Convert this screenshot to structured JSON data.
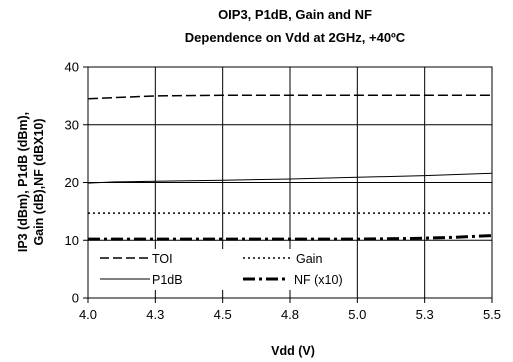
{
  "chart_data": {
    "type": "line",
    "title": "OIP3, P1dB, Gain and NF",
    "subtitle": "Dependence on Vdd at 2GHz, +40ºC",
    "xlabel": "Vdd (V)",
    "ylabel_lines": [
      "IP3 (dBm), P1dB (dBm),",
      "Gain (dB),NF (dBX10)"
    ],
    "xlim": [
      4.0,
      5.5
    ],
    "ylim": [
      0,
      40
    ],
    "x_tick_labels": [
      "4.0",
      "4.3",
      "4.5",
      "4.8",
      "5.0",
      "5.3",
      "5.5"
    ],
    "y_tick_labels": [
      "0",
      "10",
      "20",
      "30",
      "40"
    ],
    "grid": true,
    "legend_position": "inside bottom-left",
    "series": [
      {
        "name": "TOI",
        "style": "dashed",
        "color": "#000000",
        "x": [
          4.0,
          4.1,
          4.25,
          4.5,
          4.75,
          5.0,
          5.25,
          5.5
        ],
        "y": [
          34.5,
          34.7,
          35.0,
          35.1,
          35.1,
          35.1,
          35.1,
          35.1
        ]
      },
      {
        "name": "Gain",
        "style": "dotted",
        "color": "#000000",
        "x": [
          4.0,
          4.5,
          5.0,
          5.5
        ],
        "y": [
          14.7,
          14.7,
          14.7,
          14.7
        ]
      },
      {
        "name": "P1dB",
        "style": "solid",
        "color": "#000000",
        "x": [
          4.0,
          4.1,
          4.25,
          4.5,
          4.75,
          5.0,
          5.25,
          5.5
        ],
        "y": [
          19.9,
          20.1,
          20.2,
          20.4,
          20.6,
          20.9,
          21.2,
          21.6
        ]
      },
      {
        "name": "NF (x10)",
        "style": "dashdot",
        "color": "#000000",
        "x": [
          4.0,
          4.5,
          5.0,
          5.2,
          5.35,
          5.5
        ],
        "y": [
          10.2,
          10.2,
          10.2,
          10.3,
          10.5,
          10.8
        ]
      }
    ]
  }
}
